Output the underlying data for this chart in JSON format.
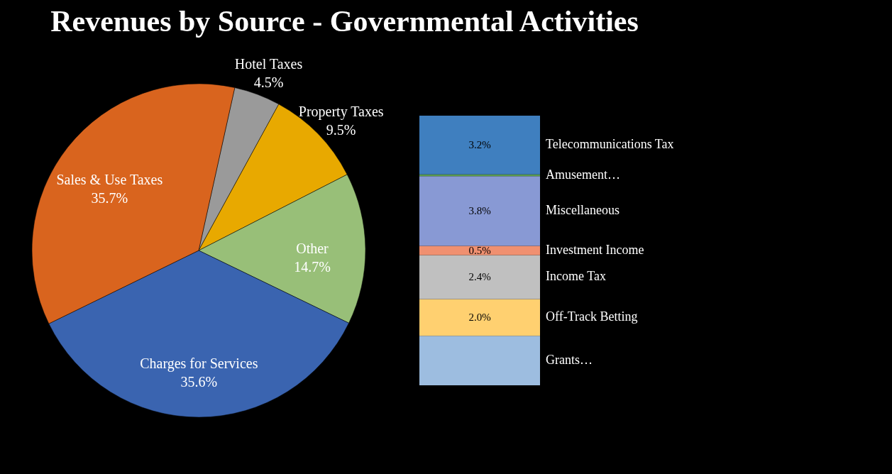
{
  "chart_data": [
    {
      "type": "pie",
      "title": "Revenues by Source - Governmental Activities",
      "categories": [
        "Hotel Taxes",
        "Property Taxes",
        "Other",
        "Charges for Services",
        "Sales & Use Taxes"
      ],
      "values": [
        4.5,
        9.5,
        14.7,
        35.6,
        35.7
      ],
      "colors": [
        "#9a9a9a",
        "#e8a900",
        "#98bf78",
        "#3a64b0",
        "#d9641e"
      ],
      "value_labels": [
        "4.5%",
        "9.5%",
        "14.7%",
        "35.6%",
        "35.7%"
      ]
    },
    {
      "type": "bar",
      "stacked": true,
      "categories": [
        null
      ],
      "series": [
        {
          "name": "Grants…",
          "color": "#9dbde0",
          "values": [
            2.7
          ],
          "value_labels": [
            null
          ]
        },
        {
          "name": "Off-Track Betting",
          "color": "#ffd070",
          "values": [
            2.0
          ],
          "value_labels": [
            "2.0%"
          ]
        },
        {
          "name": "Income Tax",
          "color": "#c0c0c0",
          "values": [
            2.4
          ],
          "value_labels": [
            "2.4%"
          ]
        },
        {
          "name": "Investment Income",
          "color": "#f09070",
          "values": [
            0.5
          ],
          "value_labels": [
            "0.5%"
          ]
        },
        {
          "name": "Miscellaneous",
          "color": "#8899d4",
          "values": [
            3.8
          ],
          "value_labels": [
            "3.8%"
          ]
        },
        {
          "name": "Amusement…",
          "color": "#5a9a4a",
          "values": [
            0.1
          ],
          "value_labels": [
            null
          ]
        },
        {
          "name": "Telecommunications Tax",
          "color": "#3f7fbf",
          "values": [
            3.2
          ],
          "value_labels": [
            "3.2%"
          ]
        }
      ]
    }
  ]
}
